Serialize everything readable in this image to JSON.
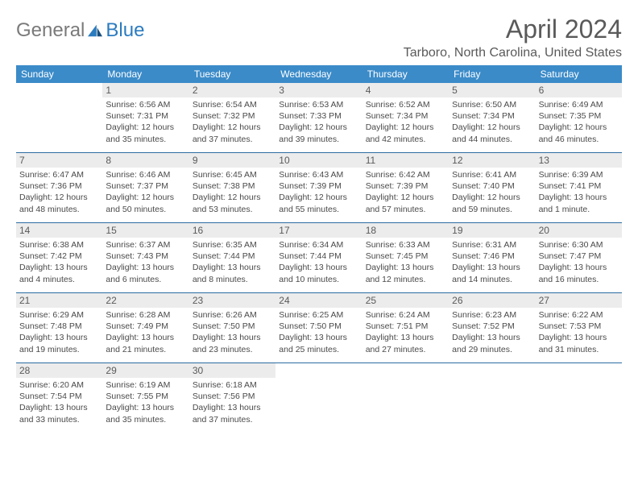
{
  "logo": {
    "text1": "General",
    "text2": "Blue"
  },
  "title": "April 2024",
  "location": "Tarboro, North Carolina, United States",
  "colors": {
    "header_bg": "#3b8bc9",
    "header_text": "#ffffff",
    "row_border": "#2b6ca3",
    "daynum_bg": "#ececec",
    "text": "#4a4a4a",
    "title_color": "#5a5a5a"
  },
  "day_names": [
    "Sunday",
    "Monday",
    "Tuesday",
    "Wednesday",
    "Thursday",
    "Friday",
    "Saturday"
  ],
  "first_weekday": 1,
  "days": [
    {
      "n": 1,
      "sunrise": "6:56 AM",
      "sunset": "7:31 PM",
      "daylight": "12 hours and 35 minutes."
    },
    {
      "n": 2,
      "sunrise": "6:54 AM",
      "sunset": "7:32 PM",
      "daylight": "12 hours and 37 minutes."
    },
    {
      "n": 3,
      "sunrise": "6:53 AM",
      "sunset": "7:33 PM",
      "daylight": "12 hours and 39 minutes."
    },
    {
      "n": 4,
      "sunrise": "6:52 AM",
      "sunset": "7:34 PM",
      "daylight": "12 hours and 42 minutes."
    },
    {
      "n": 5,
      "sunrise": "6:50 AM",
      "sunset": "7:34 PM",
      "daylight": "12 hours and 44 minutes."
    },
    {
      "n": 6,
      "sunrise": "6:49 AM",
      "sunset": "7:35 PM",
      "daylight": "12 hours and 46 minutes."
    },
    {
      "n": 7,
      "sunrise": "6:47 AM",
      "sunset": "7:36 PM",
      "daylight": "12 hours and 48 minutes."
    },
    {
      "n": 8,
      "sunrise": "6:46 AM",
      "sunset": "7:37 PM",
      "daylight": "12 hours and 50 minutes."
    },
    {
      "n": 9,
      "sunrise": "6:45 AM",
      "sunset": "7:38 PM",
      "daylight": "12 hours and 53 minutes."
    },
    {
      "n": 10,
      "sunrise": "6:43 AM",
      "sunset": "7:39 PM",
      "daylight": "12 hours and 55 minutes."
    },
    {
      "n": 11,
      "sunrise": "6:42 AM",
      "sunset": "7:39 PM",
      "daylight": "12 hours and 57 minutes."
    },
    {
      "n": 12,
      "sunrise": "6:41 AM",
      "sunset": "7:40 PM",
      "daylight": "12 hours and 59 minutes."
    },
    {
      "n": 13,
      "sunrise": "6:39 AM",
      "sunset": "7:41 PM",
      "daylight": "13 hours and 1 minute."
    },
    {
      "n": 14,
      "sunrise": "6:38 AM",
      "sunset": "7:42 PM",
      "daylight": "13 hours and 4 minutes."
    },
    {
      "n": 15,
      "sunrise": "6:37 AM",
      "sunset": "7:43 PM",
      "daylight": "13 hours and 6 minutes."
    },
    {
      "n": 16,
      "sunrise": "6:35 AM",
      "sunset": "7:44 PM",
      "daylight": "13 hours and 8 minutes."
    },
    {
      "n": 17,
      "sunrise": "6:34 AM",
      "sunset": "7:44 PM",
      "daylight": "13 hours and 10 minutes."
    },
    {
      "n": 18,
      "sunrise": "6:33 AM",
      "sunset": "7:45 PM",
      "daylight": "13 hours and 12 minutes."
    },
    {
      "n": 19,
      "sunrise": "6:31 AM",
      "sunset": "7:46 PM",
      "daylight": "13 hours and 14 minutes."
    },
    {
      "n": 20,
      "sunrise": "6:30 AM",
      "sunset": "7:47 PM",
      "daylight": "13 hours and 16 minutes."
    },
    {
      "n": 21,
      "sunrise": "6:29 AM",
      "sunset": "7:48 PM",
      "daylight": "13 hours and 19 minutes."
    },
    {
      "n": 22,
      "sunrise": "6:28 AM",
      "sunset": "7:49 PM",
      "daylight": "13 hours and 21 minutes."
    },
    {
      "n": 23,
      "sunrise": "6:26 AM",
      "sunset": "7:50 PM",
      "daylight": "13 hours and 23 minutes."
    },
    {
      "n": 24,
      "sunrise": "6:25 AM",
      "sunset": "7:50 PM",
      "daylight": "13 hours and 25 minutes."
    },
    {
      "n": 25,
      "sunrise": "6:24 AM",
      "sunset": "7:51 PM",
      "daylight": "13 hours and 27 minutes."
    },
    {
      "n": 26,
      "sunrise": "6:23 AM",
      "sunset": "7:52 PM",
      "daylight": "13 hours and 29 minutes."
    },
    {
      "n": 27,
      "sunrise": "6:22 AM",
      "sunset": "7:53 PM",
      "daylight": "13 hours and 31 minutes."
    },
    {
      "n": 28,
      "sunrise": "6:20 AM",
      "sunset": "7:54 PM",
      "daylight": "13 hours and 33 minutes."
    },
    {
      "n": 29,
      "sunrise": "6:19 AM",
      "sunset": "7:55 PM",
      "daylight": "13 hours and 35 minutes."
    },
    {
      "n": 30,
      "sunrise": "6:18 AM",
      "sunset": "7:56 PM",
      "daylight": "13 hours and 37 minutes."
    }
  ],
  "labels": {
    "sunrise": "Sunrise:",
    "sunset": "Sunset:",
    "daylight": "Daylight:"
  }
}
